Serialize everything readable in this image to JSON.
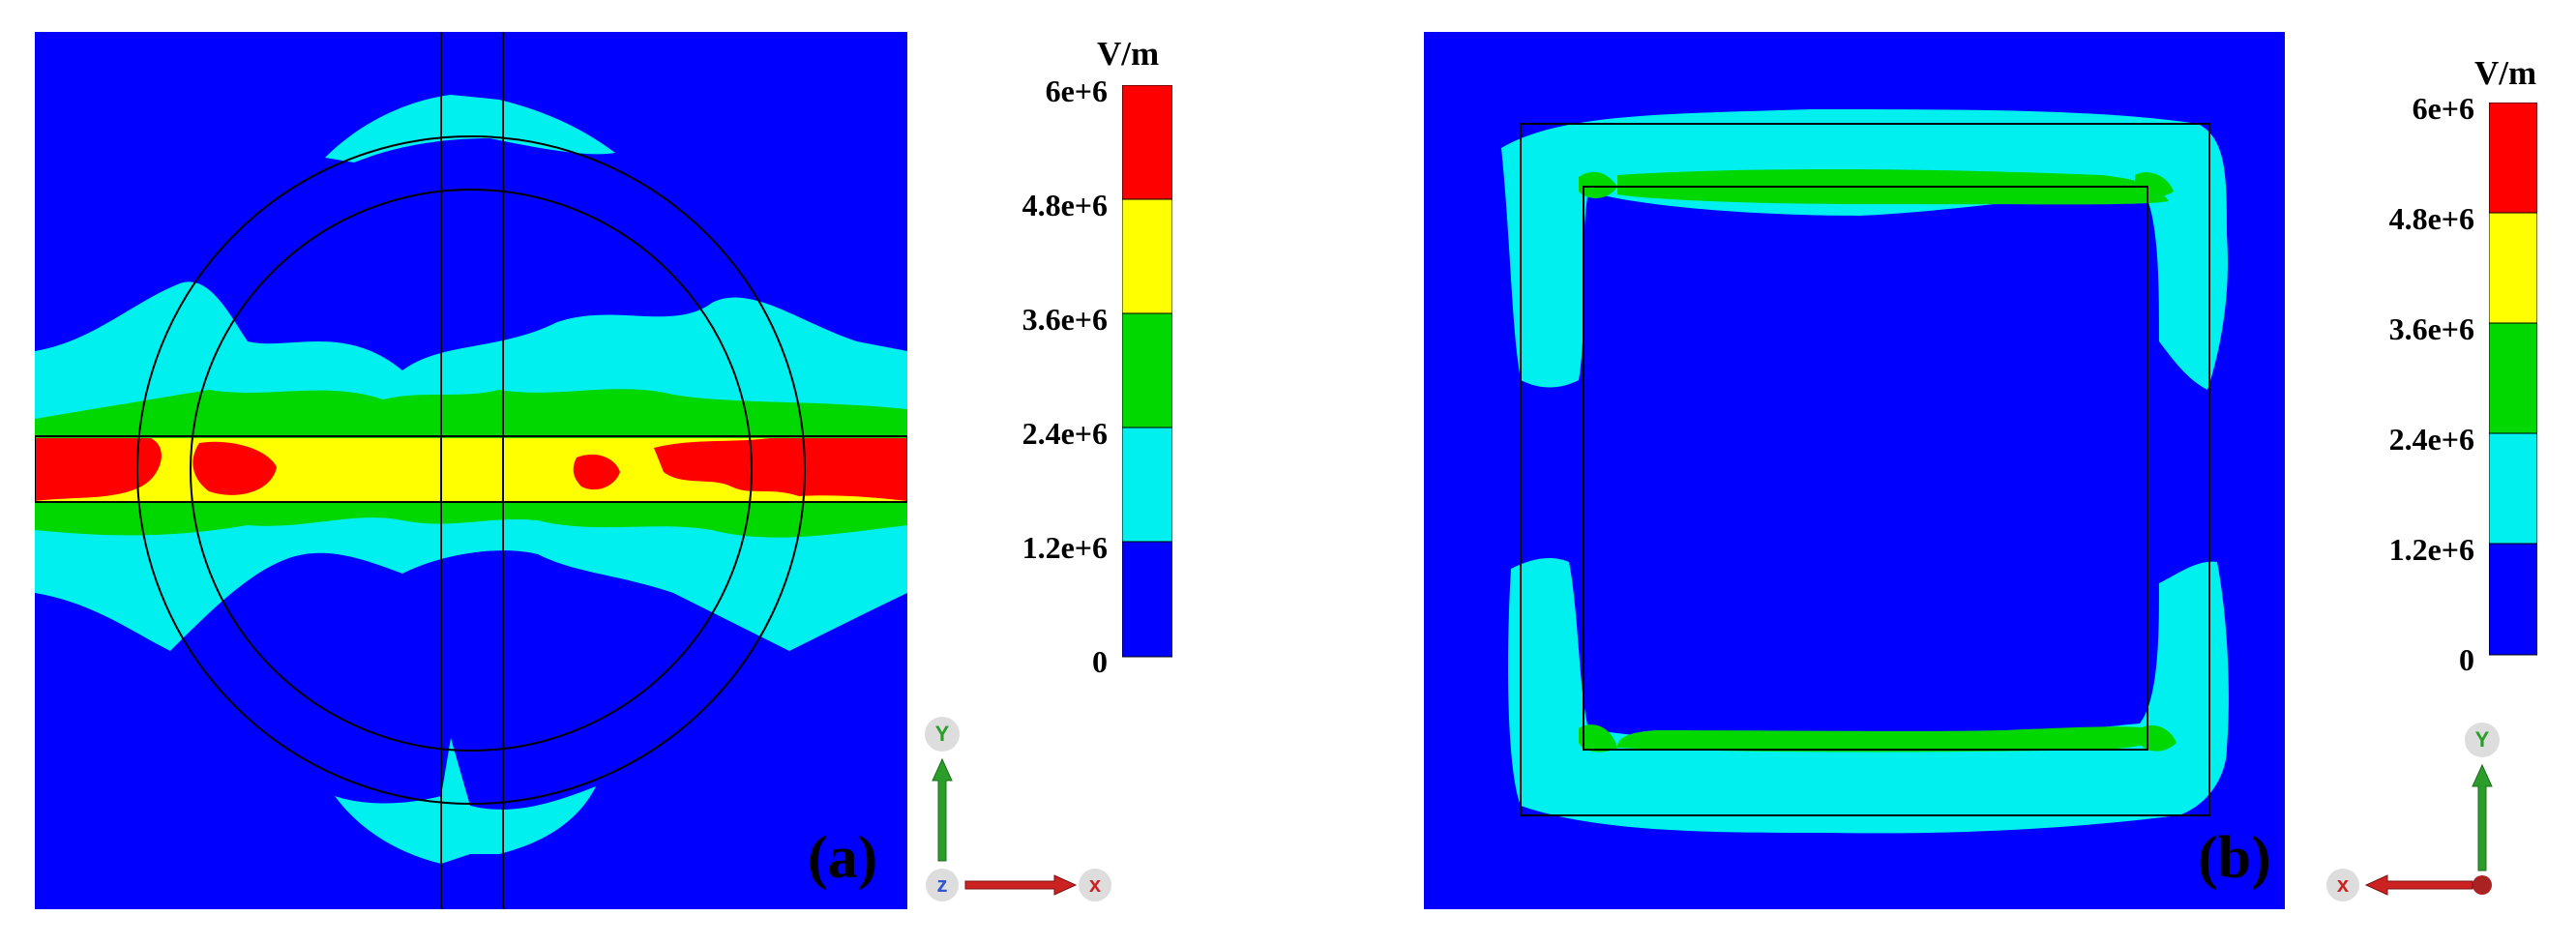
{
  "colorbar": {
    "unit": "V/m",
    "ticks": [
      "6e+6",
      "4.8e+6",
      "3.6e+6",
      "2.4e+6",
      "1.2e+6",
      "0"
    ],
    "colors": [
      "#ff0000",
      "#ffff00",
      "#00d800",
      "#00f0f0",
      "#0000ff"
    ]
  },
  "panels": [
    {
      "label": "(a)",
      "axes": {
        "up": "Y",
        "right": "X",
        "origin": "Z"
      }
    },
    {
      "label": "(b)",
      "axes": {
        "up": "Y",
        "left": "X"
      }
    }
  ],
  "palette": {
    "background": "#0000ff",
    "level1": "#00f0f0",
    "level2": "#00d800",
    "level3": "#ffff00",
    "level4": "#ff0000",
    "outline": "#000000",
    "axis_y": "#2a9d2a",
    "axis_x": "#cc2222"
  }
}
